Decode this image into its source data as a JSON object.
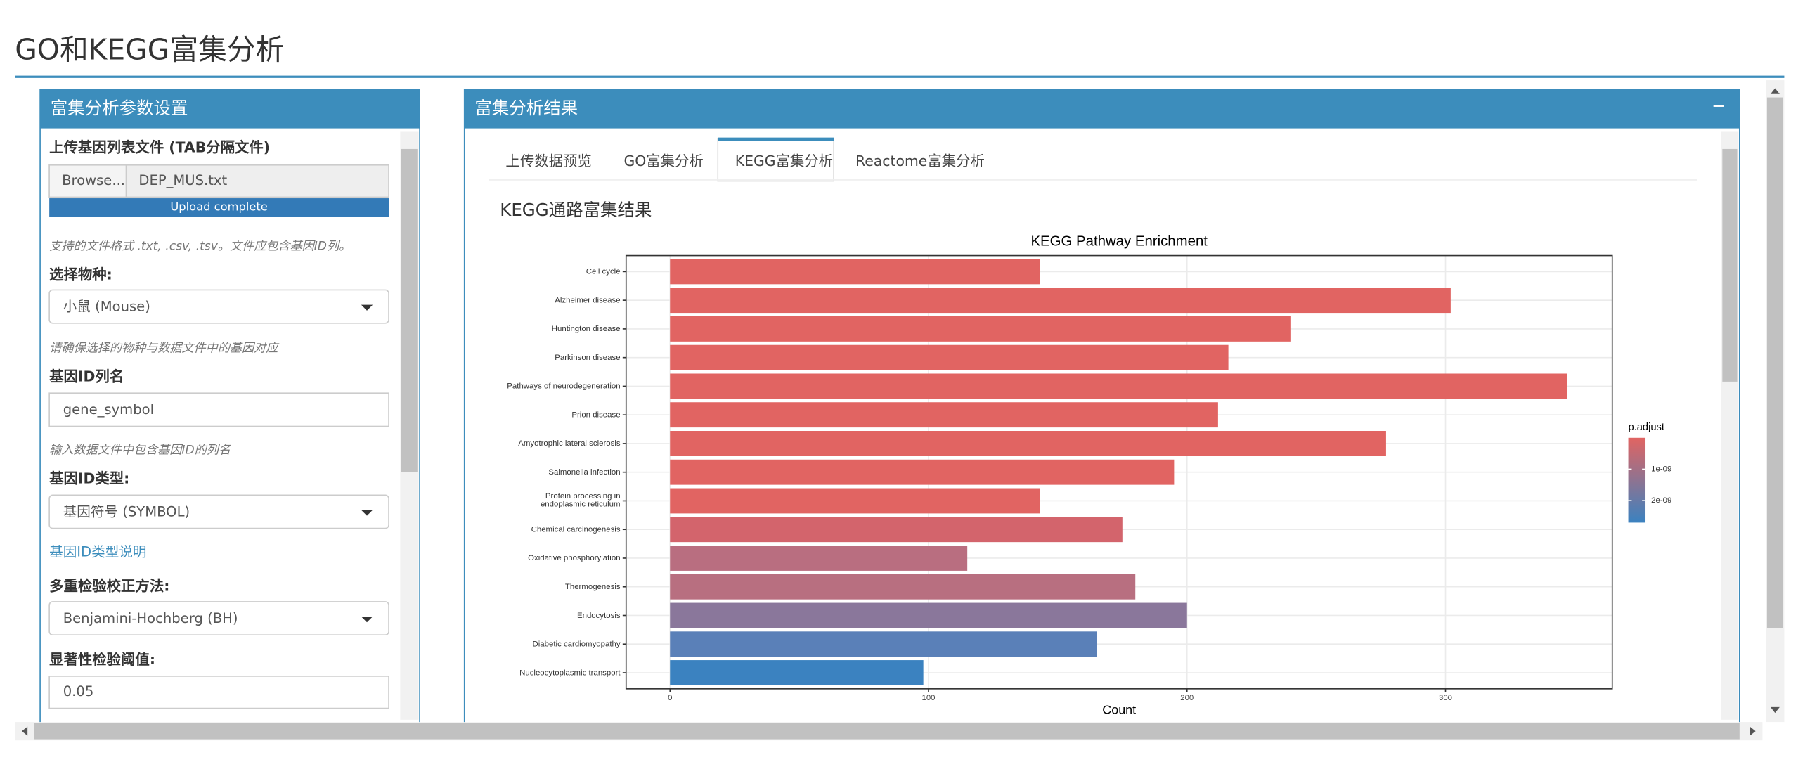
{
  "header": {
    "title": "GO和KEGG富集分析"
  },
  "left_panel": {
    "title": "富集分析参数设置",
    "upload_label": "上传基因列表文件 (TAB分隔文件)",
    "browse": "Browse...",
    "file_name": "DEP_MUS.txt",
    "progress": "Upload complete",
    "upload_help": "支持的文件格式 .txt, .csv, .tsv。文件应包含基因ID列。",
    "species_label": "选择物种:",
    "species_value": "小鼠 (Mouse)",
    "species_help": "请确保选择的物种与数据文件中的基因对应",
    "gene_col_label": "基因ID列名",
    "gene_col_value": "gene_symbol",
    "gene_col_help": "输入数据文件中包含基因ID的列名",
    "id_type_label": "基因ID类型:",
    "id_type_value": "基因符号 (SYMBOL)",
    "id_type_link": "基因ID类型说明",
    "correction_label": "多重检验校正方法:",
    "correction_value": "Benjamini-Hochberg (BH)",
    "threshold_label": "显著性检验阈值:",
    "threshold_value": "0.05"
  },
  "right_panel": {
    "title": "富集分析结果",
    "collapse": "−",
    "tabs": [
      "上传数据预览",
      "GO富集分析",
      "KEGG富集分析",
      "Reactome富集分析"
    ],
    "active_tab": 2,
    "section_title": "KEGG通路富集结果"
  },
  "chart_data": {
    "type": "bar",
    "orientation": "horizontal",
    "title": "KEGG Pathway Enrichment",
    "x_label": "Count",
    "categories": [
      "Cell cycle",
      "Alzheimer disease",
      "Huntington disease",
      "Parkinson disease",
      "Pathways of neurodegeneration",
      "Prion disease",
      "Amyotrophic lateral sclerosis",
      "Salmonella infection",
      "Protein processing in\nendoplasmic reticulum",
      "Chemical carcinogenesis",
      "Oxidative phosphorylation",
      "Thermogenesis",
      "Endocytosis",
      "Diabetic cardiomyopathy",
      "Nucleocytoplasmic transport"
    ],
    "values": [
      143,
      302,
      240,
      216,
      347,
      212,
      277,
      195,
      143,
      175,
      115,
      180,
      200,
      165,
      98
    ],
    "colors": [
      "#e16462",
      "#e16462",
      "#e16462",
      "#e16462",
      "#e16462",
      "#e16462",
      "#e16462",
      "#e16462",
      "#e16462",
      "#d3646c",
      "#b96e80",
      "#b86f80",
      "#8a779b",
      "#5a80b8",
      "#3b82c0"
    ],
    "xlim": [
      -17,
      364.5
    ],
    "xticks": [
      0,
      100,
      200,
      300
    ],
    "grid": true,
    "legend": {
      "title": "p.adjust",
      "lim": [
        0,
        2.7e-09
      ],
      "colors": [
        "#e16462",
        "#3b82c0"
      ],
      "ticks": [
        {
          "value": 1e-09,
          "label": "1e-09"
        },
        {
          "value": 2e-09,
          "label": "2e-09"
        }
      ]
    }
  }
}
